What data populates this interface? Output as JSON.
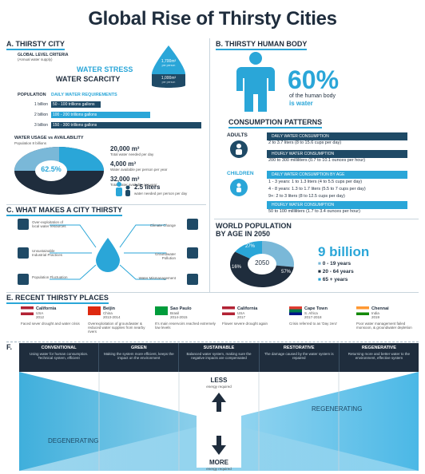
{
  "title": "Global Rise of Thirsty Cities",
  "a": {
    "heading": "A. THIRSTY CITY",
    "criteria_title": "GLOBAL LEVEL CRITERIA",
    "criteria_sub": "(Annual water supply)",
    "stress": "WATER STRESS",
    "scarcity": "WATER SCARCITY",
    "drop_top": "1,700m³",
    "drop_top_sub": "per person",
    "drop_bottom": "1,000m³",
    "drop_bottom_sub": "per person",
    "population_label": "POPULATION",
    "daily_label": "DAILY WATER REQUIREMENTS",
    "rows": [
      {
        "pop": "1 billion",
        "text": "50 - 100 trillions gallons",
        "fraction": 0.33
      },
      {
        "pop": "2 billion",
        "text": "100 - 200 trillions gallons",
        "fraction": 0.66
      },
      {
        "pop": "3 billion",
        "text": "150 - 300 trillions gallons",
        "fraction": 1.0
      }
    ],
    "usage_title": "WATER USAGE vs AVAILABILITY",
    "usage_sub": "Population 8 billions",
    "donut_value": "62.5%",
    "donut_fraction": 0.625,
    "stats": [
      {
        "value": "20,000 m³",
        "label": "Total water needed per day"
      },
      {
        "value": "4,000 m³",
        "label": "Water available per person per year"
      },
      {
        "value": "32,000 m³",
        "label": "Total water available per year"
      }
    ],
    "liters": "2.5 liters",
    "liters_sub": "water needed per person per day"
  },
  "b": {
    "heading": "B. THIRSTY HUMAN BODY",
    "percent": "60%",
    "percent_line1": "of the human body",
    "percent_line2": "is water",
    "consumption_heading": "CONSUMPTION PATTERNS",
    "adults": "ADULTS",
    "adult_pill1": "DAILY WATER CONSUMPTION",
    "adult_line1": "2 to 3.7 liters (8 to 15.6 cups per day)",
    "adult_pill2": "HOURLY WATER CONSUMPTION",
    "adult_line2": "200 to 300 milliliters (0.7 to 10.1 ounces per hour)",
    "children": "CHILDREN",
    "child_pill1": "DAILY WATER CONSUMPTION BY AGE",
    "child_lines": [
      "1 - 3 years: 1 to 1.3 liters (4 to 5.5 cups per day)",
      "4 - 8 years: 1.3 to 1.7 liters (5.5 to 7 cups per day)",
      "9+: 2 to 3 liters (8 to 12.5 cups per day)"
    ],
    "child_pill2": "HOURLY WATER CONSUMPTION",
    "child_line2": "50 to 100 milliliters (1.7 to 3.4 ounces per hour)"
  },
  "c": {
    "heading": "C. WHAT MAKES A CITY THIRSTY",
    "left": [
      "Over-exploitation of local water resources",
      "Unsustainable Industrial Practices",
      "Population Fluctuation"
    ],
    "right": [
      "Climate Change",
      "Groundwater Pollution",
      "Water Mismanagement"
    ]
  },
  "d": {
    "heading_line1": "WORLD POPULATION",
    "heading_line2": "BY AGE IN 2050",
    "center": "2050",
    "slices": [
      {
        "label": "27%",
        "value": 27,
        "color": "#7ab8d8"
      },
      {
        "label": "57%",
        "value": 57,
        "color": "#1f2d3d"
      },
      {
        "label": "16%",
        "value": 16,
        "color": "#2aa6d8"
      }
    ],
    "total": "9 billion",
    "legend": [
      "0 - 19 years",
      "20 - 64 years",
      "65 + years"
    ]
  },
  "e": {
    "heading": "E. RECENT THIRSTY PLACES",
    "places": [
      {
        "name": "California",
        "country": "USA",
        "year": "2012",
        "desc": "Faced sever drought and water crisis"
      },
      {
        "name": "Beijin",
        "country": "China",
        "year": "2013-2014",
        "desc": "Overexploitation of groundwater & reduced water supplies from nearby rivers"
      },
      {
        "name": "Sao Paulo",
        "country": "Brasil",
        "year": "2014-2015",
        "desc": "It's main reservoirs reached extremely low levels"
      },
      {
        "name": "California",
        "country": "USA",
        "year": "2017",
        "desc": "Flower severe drought again"
      },
      {
        "name": "Cape Town",
        "country": "S. Africa",
        "year": "2017-2018",
        "desc": "Crisis referred to as 'Day zero'"
      },
      {
        "name": "Chennai",
        "country": "India",
        "year": "2019",
        "desc": "Poor water management failed monsoon, & groundwater depletion"
      }
    ]
  },
  "f": {
    "heading": "F.",
    "columns": [
      {
        "title": "CONVENTIONAL",
        "desc": "Using water for human consumption. Technical system, efficient"
      },
      {
        "title": "GREEN",
        "desc": "Making the system more efficient, keeps the impact on the environment"
      },
      {
        "title": "SUSTAINABLE",
        "desc": "Balanced water system, making sure the negative impacts are compensated"
      },
      {
        "title": "RESTORATIVE",
        "desc": "The damage caused by the water system is repaired"
      },
      {
        "title": "REGENERATIVE",
        "desc": "Returning more and better water to the environment, effective system"
      }
    ],
    "less": "LESS",
    "less_sub": "energy required",
    "more": "MORE",
    "more_sub": "energy required",
    "regenerating": "REGENERATING",
    "degenerating": "DEGENERATING"
  }
}
